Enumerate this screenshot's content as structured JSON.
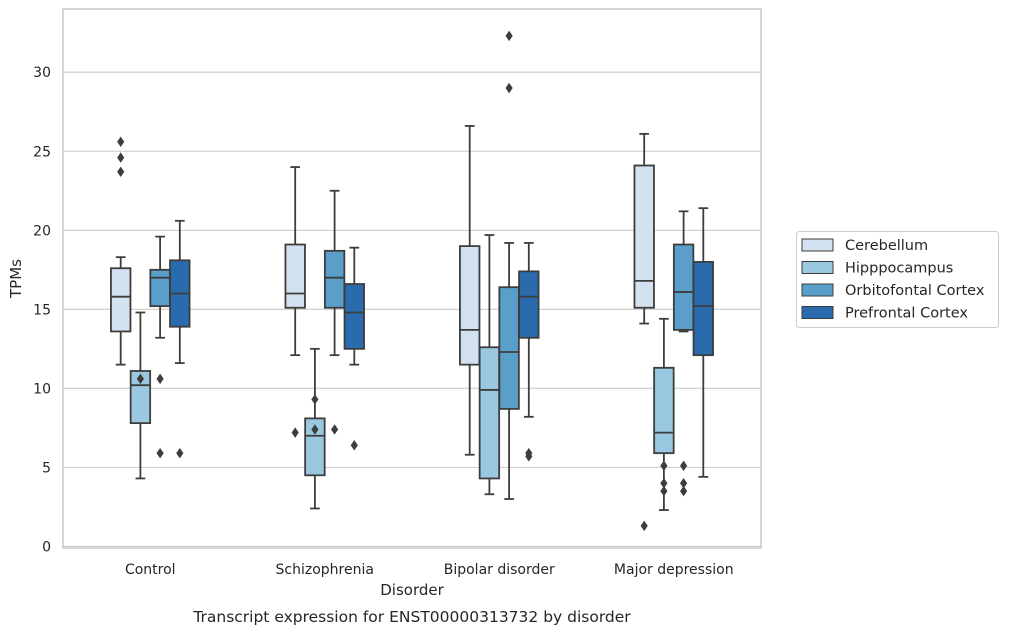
{
  "chart_data": {
    "type": "boxplot",
    "caption": "Transcript expression for ENST00000313732 by disorder",
    "xlabel": "Disorder",
    "ylabel": "TPMs",
    "ylim": [
      -0.1,
      34.0
    ],
    "yticks": [
      0,
      5,
      10,
      15,
      20,
      25,
      30
    ],
    "grid": true,
    "legend_position": "right",
    "categories": [
      "Control",
      "Schizophrenia",
      "Bipolar disorder",
      "Major depression"
    ],
    "series": [
      {
        "name": "Cerebellum",
        "color": "#d2e2f1",
        "boxes": [
          {
            "whislo": 11.5,
            "q1": 13.6,
            "med": 15.8,
            "q3": 17.6,
            "whishi": 18.3,
            "fliers": [
              25.6,
              24.6,
              23.7
            ]
          },
          {
            "whislo": 12.1,
            "q1": 15.1,
            "med": 16.0,
            "q3": 19.1,
            "whishi": 24.0,
            "fliers": [
              7.2
            ]
          },
          {
            "whislo": 5.8,
            "q1": 11.5,
            "med": 13.7,
            "q3": 19.0,
            "whishi": 26.6,
            "fliers": []
          },
          {
            "whislo": 14.1,
            "q1": 15.1,
            "med": 16.8,
            "q3": 24.1,
            "whishi": 26.1,
            "fliers": [
              1.3
            ]
          }
        ]
      },
      {
        "name": "Hipppocampus",
        "color": "#9ac8e0",
        "boxes": [
          {
            "whislo": 4.3,
            "q1": 7.8,
            "med": 10.2,
            "q3": 11.1,
            "whishi": 14.8,
            "fliers": [
              10.6
            ]
          },
          {
            "whislo": 2.4,
            "q1": 4.5,
            "med": 7.0,
            "q3": 8.1,
            "whishi": 12.5,
            "fliers": [
              9.3,
              7.4
            ]
          },
          {
            "whislo": 3.3,
            "q1": 4.3,
            "med": 9.9,
            "q3": 12.6,
            "whishi": 19.7,
            "fliers": []
          },
          {
            "whislo": 2.3,
            "q1": 5.9,
            "med": 7.2,
            "q3": 11.3,
            "whishi": 14.4,
            "fliers": [
              5.1,
              4.0,
              3.5
            ]
          }
        ]
      },
      {
        "name": "Orbitofontal Cortex",
        "color": "#5a9fca",
        "boxes": [
          {
            "whislo": 13.2,
            "q1": 15.2,
            "med": 17.0,
            "q3": 17.5,
            "whishi": 19.6,
            "fliers": [
              10.6,
              5.9
            ]
          },
          {
            "whislo": 12.1,
            "q1": 15.1,
            "med": 17.0,
            "q3": 18.7,
            "whishi": 22.5,
            "fliers": [
              7.4
            ]
          },
          {
            "whislo": 3.0,
            "q1": 8.7,
            "med": 12.3,
            "q3": 16.4,
            "whishi": 19.2,
            "fliers": [
              32.3,
              29.0
            ]
          },
          {
            "whislo": 13.6,
            "q1": 13.7,
            "med": 16.1,
            "q3": 19.1,
            "whishi": 21.2,
            "fliers": [
              5.1,
              4.0,
              3.5
            ]
          }
        ]
      },
      {
        "name": "Prefrontal Cortex",
        "color": "#2a6bae",
        "boxes": [
          {
            "whislo": 11.6,
            "q1": 13.9,
            "med": 16.0,
            "q3": 18.1,
            "whishi": 20.6,
            "fliers": [
              5.9
            ]
          },
          {
            "whislo": 11.5,
            "q1": 12.5,
            "med": 14.8,
            "q3": 16.6,
            "whishi": 18.9,
            "fliers": [
              6.4
            ]
          },
          {
            "whislo": 8.2,
            "q1": 13.2,
            "med": 15.8,
            "q3": 17.4,
            "whishi": 19.2,
            "fliers": [
              5.9,
              5.7
            ]
          },
          {
            "whislo": 4.4,
            "q1": 12.1,
            "med": 15.2,
            "q3": 18.0,
            "whishi": 21.4,
            "fliers": []
          }
        ]
      }
    ]
  }
}
